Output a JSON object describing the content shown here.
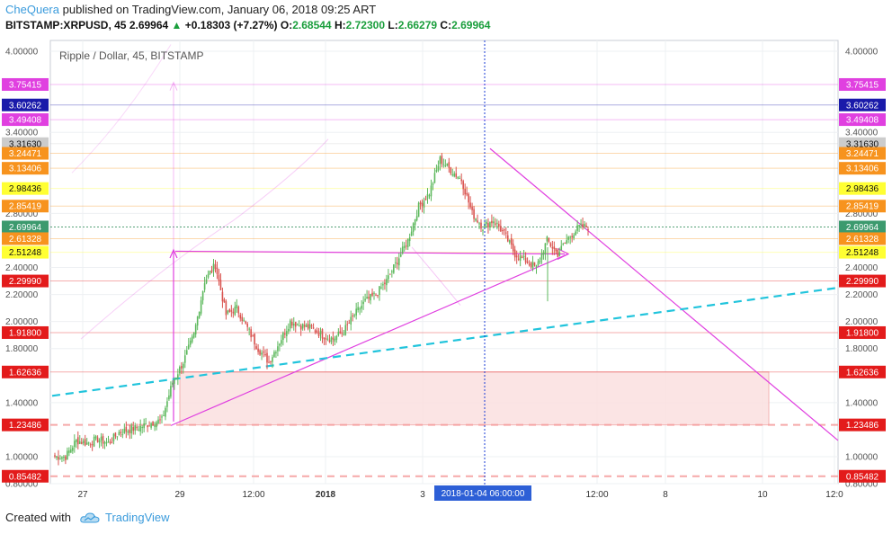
{
  "header": {
    "author": "CheQuera",
    "published_text": "published on TradingView.com, January 06, 2018 09:25 ART",
    "symbol": "BITSTAMP:XRPUSD, 45",
    "price": "2.69964",
    "change_arrow": "▲",
    "change": "+0.18303 (+7.27%)",
    "o_label": "O:",
    "o_value": "2.68544",
    "h_label": "H:",
    "h_value": "2.72300",
    "l_label": "L:",
    "l_value": "2.66279",
    "c_label": "C:",
    "c_value": "2.69964"
  },
  "chart_title": "Ripple / Dollar, 45, BITSTAMP",
  "crosshair_time_label": "2018-01-04 06:00:00",
  "footer": {
    "created_with": "Created with",
    "brand": "TradingView"
  },
  "colors": {
    "up": "#5cb85c",
    "down": "#d9534f",
    "magenta": "#e040e0",
    "cyan": "#21c4dc",
    "zone_fill": "#fbe0e0"
  },
  "price_tags": [
    {
      "value": 3.75415,
      "label": "3.75415",
      "bg": "#e040e0",
      "fg": "#ffffff"
    },
    {
      "value": 3.60262,
      "label": "3.60262",
      "bg": "#1a1aaa",
      "fg": "#ffffff"
    },
    {
      "value": 3.49408,
      "label": "3.49408",
      "bg": "#e040e0",
      "fg": "#ffffff"
    },
    {
      "value": 3.3163,
      "label": "3.31630",
      "bg": "#cccccc",
      "fg": "#111111"
    },
    {
      "value": 3.24471,
      "label": "3.24471",
      "bg": "#f7931e",
      "fg": "#ffffff"
    },
    {
      "value": 3.13406,
      "label": "3.13406",
      "bg": "#f7931e",
      "fg": "#ffffff"
    },
    {
      "value": 2.98436,
      "label": "2.98436",
      "bg": "#ffff33",
      "fg": "#111111"
    },
    {
      "value": 2.85419,
      "label": "2.85419",
      "bg": "#f7931e",
      "fg": "#ffffff"
    },
    {
      "value": 2.69964,
      "label": "2.69964",
      "bg": "#3c9a6e",
      "fg": "#ffffff"
    },
    {
      "value": 2.61328,
      "label": "2.61328",
      "bg": "#f7931e",
      "fg": "#ffffff"
    },
    {
      "value": 2.51248,
      "label": "2.51248",
      "bg": "#ffff33",
      "fg": "#111111"
    },
    {
      "value": 2.2999,
      "label": "2.29990",
      "bg": "#e31b1b",
      "fg": "#ffffff"
    },
    {
      "value": 1.918,
      "label": "1.91800",
      "bg": "#e31b1b",
      "fg": "#ffffff"
    },
    {
      "value": 1.62636,
      "label": "1.62636",
      "bg": "#e31b1b",
      "fg": "#ffffff"
    },
    {
      "value": 1.23486,
      "label": "1.23486",
      "bg": "#e31b1b",
      "fg": "#ffffff"
    },
    {
      "value": 0.85482,
      "label": "0.85482",
      "bg": "#e31b1b",
      "fg": "#ffffff"
    }
  ],
  "chart_data": {
    "type": "candlestick",
    "title": "Ripple / Dollar, 45, BITSTAMP",
    "ylim": [
      0.8,
      4.08
    ],
    "y_ticks": [
      {
        "value": 4.0,
        "label": "4.00000"
      },
      {
        "value": 3.4,
        "label": "3.40000"
      },
      {
        "value": 2.8,
        "label": "2.80000"
      },
      {
        "value": 2.4,
        "label": "2.40000"
      },
      {
        "value": 2.2,
        "label": "2.20000"
      },
      {
        "value": 2.0,
        "label": "2.00000"
      },
      {
        "value": 1.8,
        "label": "1.80000"
      },
      {
        "value": 1.4,
        "label": "1.40000"
      },
      {
        "value": 1.0,
        "label": "1.00000"
      },
      {
        "value": 0.8,
        "label": "0.80000"
      }
    ],
    "x_ticks": [
      "27",
      "29",
      "12:00",
      "2018",
      "3",
      "12:00",
      "8",
      "10",
      "12:0"
    ],
    "close_series_approx": [
      1.0,
      1.0,
      1.12,
      1.1,
      1.13,
      1.1,
      1.18,
      1.2,
      1.22,
      1.25,
      1.27,
      1.55,
      1.7,
      1.9,
      2.3,
      2.42,
      2.05,
      2.1,
      1.95,
      1.8,
      1.7,
      1.85,
      2.0,
      1.97,
      1.95,
      1.9,
      1.87,
      1.93,
      2.05,
      2.15,
      2.2,
      2.3,
      2.45,
      2.6,
      2.85,
      2.95,
      3.2,
      3.12,
      3.05,
      2.8,
      2.7,
      2.75,
      2.65,
      2.5,
      2.45,
      2.4,
      2.6,
      2.5,
      2.62,
      2.7,
      2.7
    ]
  }
}
